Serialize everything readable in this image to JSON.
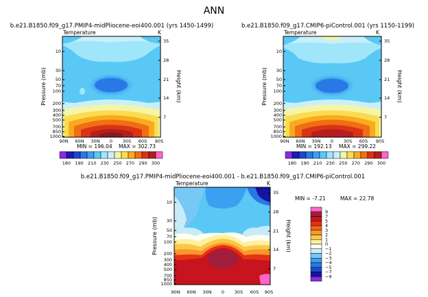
{
  "figure_title": "ANN",
  "chart_data": [
    {
      "type": "heatmap",
      "title": "b.e21.B1850.f09_g17.PMIP4-midPliocene-eoi400.001 (yrs 1450-1499)",
      "subtitle": "Temperature",
      "units": "K",
      "xlabel": "",
      "ylabel": "Pressure (mb)",
      "y2label": "Height (km)",
      "x_ticks": [
        "90N",
        "60N",
        "30N",
        "0",
        "30S",
        "60S",
        "90S"
      ],
      "y_ticks": [
        "10",
        "30",
        "50",
        "70",
        "100",
        "200",
        "300",
        "400",
        "500",
        "700",
        "850",
        "1000"
      ],
      "y2_ticks": [
        "35",
        "28",
        "21",
        "14",
        "7"
      ],
      "min_label": "MIN = 196.04",
      "max_label": "MAX = 302.73",
      "colorbar_levels": [
        "180",
        "190",
        "200",
        "210",
        "220",
        "230",
        "240",
        "250",
        "260",
        "270",
        "280",
        "290",
        "300"
      ],
      "colorbar_tick_labels": [
        "180",
        "190",
        "210",
        "230",
        "250",
        "270",
        "290",
        "300"
      ],
      "colorbar_colors": [
        "#8a2be2",
        "#1c1cb4",
        "#1e46d2",
        "#2878e6",
        "#3c9ff0",
        "#5ac8f5",
        "#a0e6fa",
        "#c8f0fa",
        "#f5f5a5",
        "#fadc50",
        "#faaa1e",
        "#f06e14",
        "#dc3214",
        "#b41e1e",
        "#ff64c8"
      ],
      "xlim": [
        -90,
        90
      ],
      "ylim": [
        1000,
        3
      ]
    },
    {
      "type": "heatmap",
      "title": "b.e21.B1850.f09_g17.CMIP6-piControl.001 (yrs 1150-1199)",
      "subtitle": "Temperature",
      "units": "K",
      "xlabel": "",
      "ylabel": "Pressure (mb)",
      "y2label": "Height (km)",
      "x_ticks": [
        "90N",
        "60N",
        "30N",
        "0",
        "30S",
        "60S",
        "90S"
      ],
      "y_ticks": [
        "10",
        "30",
        "50",
        "70",
        "100",
        "200",
        "300",
        "400",
        "500",
        "700",
        "850",
        "1000"
      ],
      "y2_ticks": [
        "35",
        "28",
        "21",
        "14",
        "7"
      ],
      "min_label": "MIN = 192.13",
      "max_label": "MAX = 299.22",
      "colorbar_levels": [
        "180",
        "190",
        "200",
        "210",
        "220",
        "230",
        "240",
        "250",
        "260",
        "270",
        "280",
        "290",
        "300"
      ],
      "colorbar_tick_labels": [
        "180",
        "190",
        "210",
        "230",
        "250",
        "270",
        "290",
        "300"
      ],
      "colorbar_colors": [
        "#8a2be2",
        "#1c1cb4",
        "#1e46d2",
        "#2878e6",
        "#3c9ff0",
        "#5ac8f5",
        "#a0e6fa",
        "#c8f0fa",
        "#f5f5a5",
        "#fadc50",
        "#faaa1e",
        "#f06e14",
        "#dc3214",
        "#b41e1e",
        "#ff64c8"
      ],
      "xlim": [
        -90,
        90
      ],
      "ylim": [
        1000,
        3
      ]
    },
    {
      "type": "heatmap",
      "title": "b.e21.B1850.f09_g17.PMIP4-midPliocene-eoi400.001 - b.e21.B1850.f09_g17.CMIP6-piControl.001",
      "subtitle": "Temperature",
      "units": "K",
      "xlabel": "",
      "ylabel": "Pressure (mb)",
      "y2label": "Height (km)",
      "x_ticks": [
        "90N",
        "60N",
        "30N",
        "0",
        "30S",
        "60S",
        "90S"
      ],
      "y_ticks": [
        "10",
        "30",
        "50",
        "70",
        "100",
        "200",
        "300",
        "400",
        "500",
        "700",
        "850",
        "1000"
      ],
      "y2_ticks": [
        "35",
        "28",
        "21",
        "14",
        "7"
      ],
      "min_label": "MIN = -7.21",
      "max_label": "MAX = 22.78",
      "colorbar_levels": [
        "9",
        "7",
        "5",
        "4",
        "3",
        "2",
        "1",
        "0",
        "-1",
        "-2",
        "-3",
        "-4",
        "-5",
        "-7",
        "-9"
      ],
      "colorbar_tick_labels": [
        "9",
        "7",
        "5",
        "4",
        "3",
        "2",
        "1",
        "0",
        "−1",
        "−2",
        "−3",
        "−4",
        "−5",
        "−7",
        "−9"
      ],
      "colorbar_colors": [
        "#ff64c8",
        "#a01e3c",
        "#c8141e",
        "#e63214",
        "#f0641e",
        "#fa962d",
        "#fac846",
        "#fff0a0",
        "#fffff0",
        "#c8ebfa",
        "#78c8f5",
        "#3ca0f0",
        "#2878e6",
        "#1e46d2",
        "#1414a0",
        "#8a2be2"
      ],
      "xlim": [
        -90,
        90
      ],
      "ylim": [
        1000,
        3
      ]
    }
  ]
}
